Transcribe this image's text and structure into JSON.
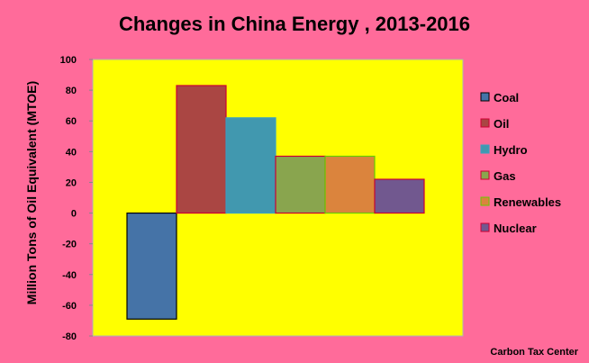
{
  "chart_data": {
    "type": "bar",
    "title": "Changes in China Energy , 2013-2016",
    "xlabel": "",
    "ylabel": "Million Tons of Oil Equivalent (MTOE)",
    "ylim": [
      -80,
      100
    ],
    "yticks": [
      100,
      80,
      60,
      40,
      20,
      0,
      -20,
      -40,
      -60,
      -80
    ],
    "grid": false,
    "legend_position": "right",
    "series": [
      {
        "name": "Coal",
        "value": -69,
        "color": "#4573a7",
        "border": "#000000"
      },
      {
        "name": "Oil",
        "value": 83,
        "color": "#aa4643",
        "border": "#cc0033"
      },
      {
        "name": "Hydro",
        "value": 62,
        "color": "#4198af",
        "border": "#3aa0c0"
      },
      {
        "name": "Gas",
        "value": 37,
        "color": "#89a54e",
        "border": "#cc0033"
      },
      {
        "name": "Renewables",
        "value": 37,
        "color": "#db843d",
        "border": "#66cc00"
      },
      {
        "name": "Nuclear",
        "value": 22,
        "color": "#71588f",
        "border": "#cc0033"
      }
    ],
    "plot_background": "#ffff00"
  },
  "footer": "Carbon Tax Center"
}
